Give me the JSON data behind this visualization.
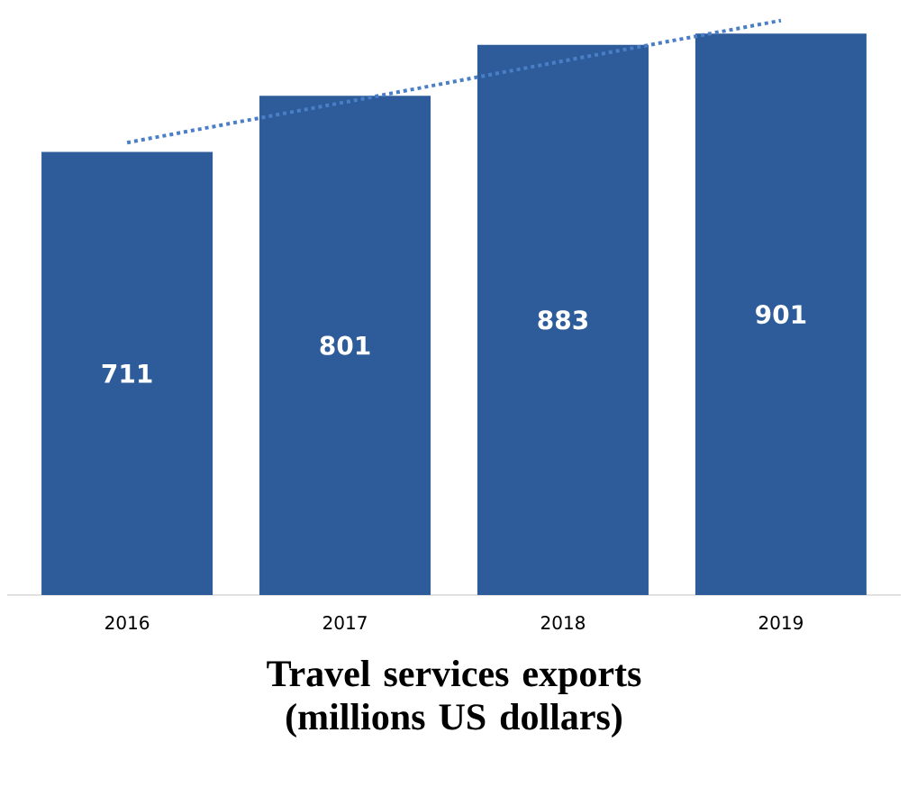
{
  "chart_data": {
    "type": "bar",
    "xlabel": "Travel services exports (millions US dollars)",
    "categories": [
      "2016",
      "2017",
      "2018",
      "2019"
    ],
    "series": [
      {
        "color": "#2e5c9a",
        "values": [
          711,
          801,
          883,
          901
        ],
        "value_labels": [
          "711",
          "801",
          "883",
          "901"
        ]
      },
      {
        "type": "line",
        "color": "#4a7fc8",
        "line_style": "dotted",
        "values": [
          726,
          791,
          857,
          922
        ]
      }
    ]
  }
}
